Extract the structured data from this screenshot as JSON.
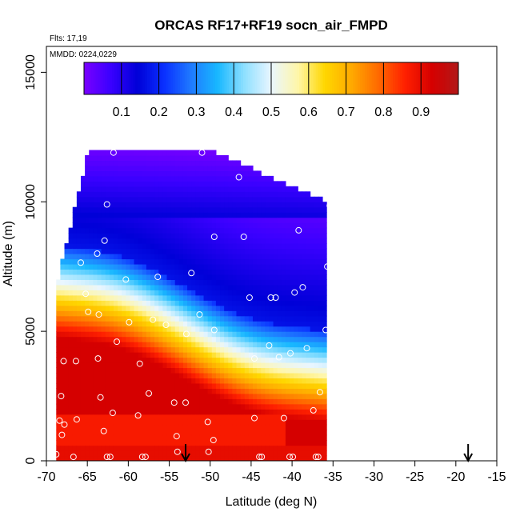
{
  "chart_data": {
    "type": "heatmap",
    "title": "ORCAS RF17+RF19 socn_air_FMPD",
    "annotations": [
      "Flts: 17,19",
      "MMDD: 0224,0229"
    ],
    "xlabel": "Latitude (deg N)",
    "ylabel": "Altitude (m)",
    "xlim": [
      -70,
      -15
    ],
    "ylim": [
      0,
      16000
    ],
    "x_ticks": [
      "-70",
      "-65",
      "-60",
      "-55",
      "-50",
      "-45",
      "-40",
      "-35",
      "-30",
      "-25",
      "-20",
      "-15"
    ],
    "y_ticks": [
      "0",
      "5000",
      "10000",
      "15000"
    ],
    "colorbar": {
      "range": [
        0,
        1
      ],
      "tick_labels": [
        "0.1",
        "0.2",
        "0.3",
        "0.4",
        "0.5",
        "0.6",
        "0.7",
        "0.8",
        "0.9"
      ],
      "colors": [
        "#7a00ff",
        "#3a00ff",
        "#0000d8",
        "#0a30ff",
        "#1f7aff",
        "#18b8ff",
        "#8fe0ff",
        "#e9f6ff",
        "#fff6a8",
        "#ffd700",
        "#ffaa00",
        "#ff6a00",
        "#ff2000",
        "#d60000",
        "#b11818"
      ]
    },
    "grid": false,
    "legend": "top",
    "arrows_lat": [
      -53,
      -18.5
    ],
    "observations": [
      {
        "lat": -61.8,
        "alt": 11900
      },
      {
        "lat": -51.0,
        "alt": 11900
      },
      {
        "lat": -46.5,
        "alt": 10950
      },
      {
        "lat": -62.6,
        "alt": 9900
      },
      {
        "lat": -35.4,
        "alt": 9850
      },
      {
        "lat": -39.2,
        "alt": 8900
      },
      {
        "lat": -49.5,
        "alt": 8650
      },
      {
        "lat": -45.9,
        "alt": 8650
      },
      {
        "lat": -62.9,
        "alt": 8500
      },
      {
        "lat": -63.8,
        "alt": 8000
      },
      {
        "lat": -65.8,
        "alt": 7650
      },
      {
        "lat": -35.7,
        "alt": 7500
      },
      {
        "lat": -52.3,
        "alt": 7250
      },
      {
        "lat": -56.4,
        "alt": 7100
      },
      {
        "lat": -60.3,
        "alt": 7000
      },
      {
        "lat": -38.7,
        "alt": 6700
      },
      {
        "lat": -39.7,
        "alt": 6500
      },
      {
        "lat": -65.2,
        "alt": 6450
      },
      {
        "lat": -45.2,
        "alt": 6300
      },
      {
        "lat": -42.6,
        "alt": 6300
      },
      {
        "lat": -42.0,
        "alt": 6300
      },
      {
        "lat": -64.9,
        "alt": 5750
      },
      {
        "lat": -51.3,
        "alt": 5650
      },
      {
        "lat": -63.6,
        "alt": 5650
      },
      {
        "lat": -57.0,
        "alt": 5450
      },
      {
        "lat": -59.9,
        "alt": 5350
      },
      {
        "lat": -55.4,
        "alt": 5250
      },
      {
        "lat": -49.5,
        "alt": 5050
      },
      {
        "lat": -35.9,
        "alt": 5050
      },
      {
        "lat": -52.9,
        "alt": 4900
      },
      {
        "lat": -61.4,
        "alt": 4600
      },
      {
        "lat": -42.8,
        "alt": 4450
      },
      {
        "lat": -38.2,
        "alt": 4350
      },
      {
        "lat": -40.2,
        "alt": 4150
      },
      {
        "lat": -41.6,
        "alt": 4000
      },
      {
        "lat": -44.6,
        "alt": 3950
      },
      {
        "lat": -63.7,
        "alt": 3950
      },
      {
        "lat": -58.6,
        "alt": 3750
      },
      {
        "lat": -66.4,
        "alt": 3850
      },
      {
        "lat": -67.9,
        "alt": 3850
      },
      {
        "lat": -36.6,
        "alt": 2650
      },
      {
        "lat": -57.5,
        "alt": 2600
      },
      {
        "lat": -68.2,
        "alt": 2500
      },
      {
        "lat": -63.4,
        "alt": 2450
      },
      {
        "lat": -53.0,
        "alt": 2250
      },
      {
        "lat": -54.4,
        "alt": 2250
      },
      {
        "lat": -37.4,
        "alt": 1950
      },
      {
        "lat": -61.9,
        "alt": 1850
      },
      {
        "lat": -58.8,
        "alt": 1750
      },
      {
        "lat": -44.6,
        "alt": 1650
      },
      {
        "lat": -41.0,
        "alt": 1650
      },
      {
        "lat": -66.3,
        "alt": 1600
      },
      {
        "lat": -68.4,
        "alt": 1550
      },
      {
        "lat": -50.3,
        "alt": 1500
      },
      {
        "lat": -67.8,
        "alt": 1400
      },
      {
        "lat": -63.0,
        "alt": 1150
      },
      {
        "lat": -68.1,
        "alt": 1000
      },
      {
        "lat": -54.1,
        "alt": 950
      },
      {
        "lat": -49.6,
        "alt": 800
      },
      {
        "lat": -54.0,
        "alt": 350
      },
      {
        "lat": -50.2,
        "alt": 350
      },
      {
        "lat": -68.8,
        "alt": 250
      },
      {
        "lat": -62.6,
        "alt": 150
      },
      {
        "lat": -62.2,
        "alt": 150
      },
      {
        "lat": -57.9,
        "alt": 150
      },
      {
        "lat": -58.3,
        "alt": 150
      },
      {
        "lat": -66.7,
        "alt": 150
      },
      {
        "lat": -44.0,
        "alt": 150
      },
      {
        "lat": -43.7,
        "alt": 150
      },
      {
        "lat": -40.3,
        "alt": 150
      },
      {
        "lat": -39.9,
        "alt": 150
      },
      {
        "lat": -36.8,
        "alt": 150
      },
      {
        "lat": -37.1,
        "alt": 150
      }
    ]
  }
}
